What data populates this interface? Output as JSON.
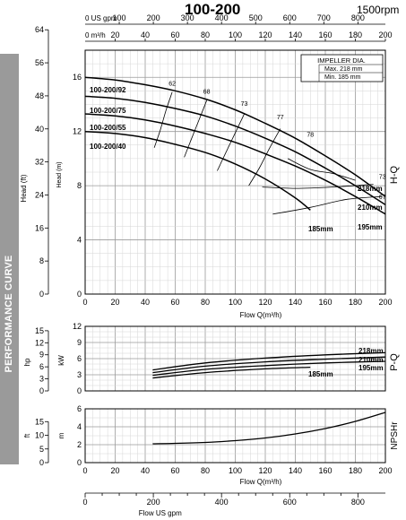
{
  "header": {
    "model": "100-200",
    "speed": "1500rpm",
    "sidebar_label": "PERFORMANCE CURVE"
  },
  "axes": {
    "flow_m3h_label": "0 m³/h",
    "flow_m3h_ticks": [
      20,
      40,
      60,
      80,
      100,
      120,
      140,
      160,
      180,
      200
    ],
    "flow_gpm_label": "0 US gpm",
    "flow_gpm_top_ticks": [
      100,
      200,
      300,
      400,
      500,
      600,
      700,
      800
    ],
    "flow_gpm_bottom_ticks": [
      0,
      200,
      400,
      600,
      800
    ],
    "flow_bottom_label": "Flow  Q(m³/h)",
    "flow_bottom_label2": "Flow  Q(m³/h)",
    "flow_gpm_bottom_label": "Flow  US gpm",
    "x_ticks": [
      0,
      20,
      40,
      60,
      80,
      100,
      120,
      140,
      160,
      180,
      200
    ]
  },
  "chart_data": [
    {
      "type": "line",
      "title": "H-Q",
      "xlabel": "Flow Q(m³/h)",
      "ylabel": "Head (m)",
      "ylabel_ft": "Head (ft)",
      "xlim": [
        0,
        200
      ],
      "ylim": [
        0,
        18
      ],
      "y_ticks": [
        0,
        4,
        8,
        12,
        16
      ],
      "y_ft_ticks": [
        0,
        8,
        16,
        24,
        32,
        40,
        48,
        56,
        64
      ],
      "grid": true,
      "impeller": {
        "title": "IMPELLER DIA.",
        "max": "Max.  218 mm",
        "min": "Min.  185 mm"
      },
      "series": [
        {
          "name": "100-200/92",
          "end_label": "218mm",
          "x": [
            0,
            20,
            40,
            60,
            80,
            100,
            120,
            140,
            160,
            180,
            200
          ],
          "y": [
            16.0,
            15.8,
            15.45,
            15.0,
            14.4,
            13.6,
            12.6,
            11.5,
            10.2,
            8.8,
            7.2
          ]
        },
        {
          "name": "100-200/75",
          "end_label": "210mm",
          "x": [
            0,
            20,
            40,
            60,
            80,
            100,
            120,
            140,
            160,
            180,
            200
          ],
          "y": [
            14.6,
            14.45,
            14.15,
            13.7,
            13.15,
            12.4,
            11.5,
            10.5,
            9.3,
            8.0,
            6.6
          ]
        },
        {
          "name": "100-200/55",
          "end_label": "195mm",
          "x": [
            0,
            20,
            40,
            60,
            80,
            100,
            120,
            140,
            160,
            180,
            200
          ],
          "y": [
            13.3,
            13.15,
            12.85,
            12.4,
            11.85,
            11.2,
            10.35,
            9.45,
            8.4,
            7.2,
            5.9
          ]
        },
        {
          "name": "100-200/40",
          "end_label": "185mm",
          "x": [
            0,
            20,
            40,
            60,
            80,
            100,
            120,
            140,
            150
          ],
          "y": [
            12.0,
            11.85,
            11.55,
            11.05,
            10.45,
            9.6,
            8.5,
            7.1,
            6.2
          ]
        }
      ],
      "efficiency_labels": [
        "62",
        "68",
        "73",
        "77",
        "78",
        "73",
        "67"
      ]
    },
    {
      "type": "line",
      "title": "P-Q",
      "xlabel": "Flow Q(m³/h)",
      "ylabel": "kW",
      "ylabel_hp": "hp",
      "xlim": [
        0,
        200
      ],
      "ylim": [
        0,
        12
      ],
      "y_ticks": [
        0,
        3,
        6,
        9,
        12
      ],
      "y_hp_ticks": [
        0,
        3,
        6,
        9,
        12,
        15
      ],
      "grid": true,
      "series": [
        {
          "name": "218mm",
          "x": [
            45,
            80,
            120,
            160,
            200
          ],
          "y": [
            3.9,
            5.2,
            6.1,
            6.7,
            7.1
          ]
        },
        {
          "name": "210mm",
          "x": [
            45,
            80,
            120,
            160,
            200
          ],
          "y": [
            3.4,
            4.6,
            5.4,
            5.9,
            6.3
          ]
        },
        {
          "name": "195mm",
          "x": [
            45,
            80,
            120,
            160,
            200
          ],
          "y": [
            2.9,
            4.0,
            4.7,
            5.2,
            5.5
          ]
        },
        {
          "name": "185mm",
          "x": [
            45,
            80,
            120,
            150
          ],
          "y": [
            2.4,
            3.4,
            4.1,
            4.4
          ]
        }
      ]
    },
    {
      "type": "line",
      "title": "NPSHr",
      "xlabel": "Flow Q(m³/h)",
      "ylabel": "m",
      "ylabel_ft": "ft",
      "xlim": [
        0,
        200
      ],
      "ylim": [
        0,
        6
      ],
      "y_ticks": [
        0,
        2,
        4,
        6
      ],
      "y_ft_ticks": [
        0,
        5,
        10,
        15
      ],
      "grid": true,
      "series": [
        {
          "name": "",
          "x": [
            45,
            60,
            80,
            100,
            120,
            140,
            160,
            180,
            200
          ],
          "y": [
            2.1,
            2.15,
            2.25,
            2.45,
            2.75,
            3.2,
            3.8,
            4.6,
            5.6
          ]
        }
      ]
    }
  ]
}
